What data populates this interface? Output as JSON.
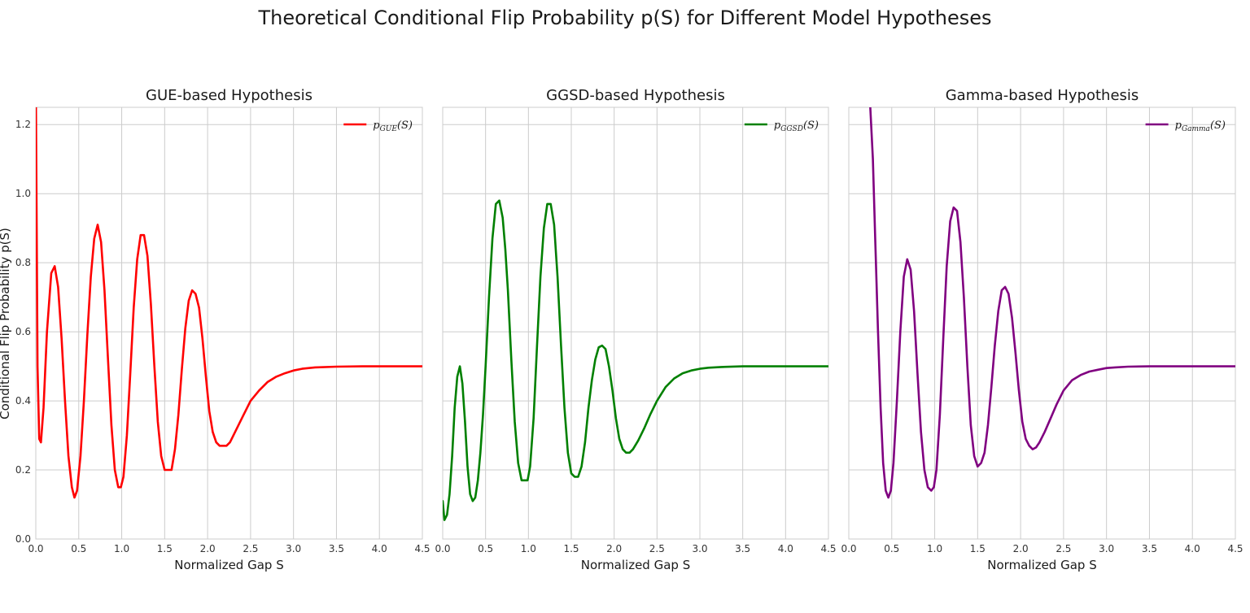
{
  "figure": {
    "title": "Theoretical Conditional Flip Probability p(S) for Different Model Hypotheses",
    "ylabel": "Conditional Flip Probability p(S)"
  },
  "chart_data": [
    {
      "type": "line",
      "title": "GUE-based Hypothesis",
      "xlabel": "Normalized Gap S",
      "ylabel": "Conditional Flip Probability p(S)",
      "xlim": [
        0,
        4.5
      ],
      "ylim": [
        0,
        1.25
      ],
      "xticks": [
        "0.0",
        "0.5",
        "1.0",
        "1.5",
        "2.0",
        "2.5",
        "3.0",
        "3.5",
        "4.0",
        "4.5"
      ],
      "yticks": [
        "0.0",
        "0.2",
        "0.4",
        "0.6",
        "0.8",
        "1.0",
        "1.2"
      ],
      "grid": true,
      "legend_position": "top-right",
      "series": [
        {
          "name": "p_GUE(S)",
          "legend_base": "p",
          "legend_sub": "GUE",
          "legend_tail": "(S)",
          "color": "#ff0000",
          "x": [
            0.002,
            0.01,
            0.02,
            0.04,
            0.06,
            0.09,
            0.13,
            0.18,
            0.22,
            0.26,
            0.3,
            0.34,
            0.38,
            0.42,
            0.45,
            0.48,
            0.52,
            0.56,
            0.6,
            0.64,
            0.68,
            0.72,
            0.76,
            0.8,
            0.84,
            0.88,
            0.92,
            0.96,
            0.99,
            1.02,
            1.06,
            1.1,
            1.14,
            1.18,
            1.22,
            1.26,
            1.3,
            1.34,
            1.38,
            1.42,
            1.46,
            1.5,
            1.54,
            1.58,
            1.62,
            1.66,
            1.7,
            1.74,
            1.78,
            1.82,
            1.86,
            1.9,
            1.94,
            1.98,
            2.02,
            2.06,
            2.1,
            2.14,
            2.18,
            2.22,
            2.26,
            2.3,
            2.36,
            2.42,
            2.5,
            2.6,
            2.7,
            2.8,
            2.9,
            3.0,
            3.1,
            3.25,
            3.5,
            3.8,
            4.1,
            4.5
          ],
          "y": [
            1.25,
            0.9,
            0.5,
            0.29,
            0.28,
            0.38,
            0.6,
            0.77,
            0.79,
            0.73,
            0.58,
            0.4,
            0.24,
            0.15,
            0.12,
            0.14,
            0.24,
            0.4,
            0.59,
            0.76,
            0.87,
            0.91,
            0.86,
            0.72,
            0.52,
            0.33,
            0.2,
            0.15,
            0.15,
            0.18,
            0.3,
            0.48,
            0.67,
            0.81,
            0.88,
            0.88,
            0.82,
            0.68,
            0.5,
            0.34,
            0.24,
            0.2,
            0.2,
            0.2,
            0.26,
            0.36,
            0.49,
            0.61,
            0.69,
            0.72,
            0.71,
            0.67,
            0.58,
            0.47,
            0.37,
            0.31,
            0.28,
            0.27,
            0.27,
            0.27,
            0.28,
            0.3,
            0.33,
            0.36,
            0.4,
            0.43,
            0.455,
            0.47,
            0.48,
            0.488,
            0.493,
            0.497,
            0.499,
            0.5,
            0.5,
            0.5
          ]
        }
      ]
    },
    {
      "type": "line",
      "title": "GGSD-based Hypothesis",
      "xlabel": "Normalized Gap S",
      "xlim": [
        0,
        4.5
      ],
      "ylim": [
        0,
        1.25
      ],
      "xticks": [
        "0.0",
        "0.5",
        "1.0",
        "1.5",
        "2.0",
        "2.5",
        "3.0",
        "3.5",
        "4.0",
        "4.5"
      ],
      "grid": true,
      "legend_position": "top-right",
      "series": [
        {
          "name": "p_GGSD(S)",
          "legend_base": "p",
          "legend_sub": "GGSD",
          "legend_tail": "(S)",
          "color": "#008000",
          "x": [
            0.0,
            0.02,
            0.05,
            0.08,
            0.11,
            0.14,
            0.17,
            0.2,
            0.23,
            0.26,
            0.29,
            0.32,
            0.35,
            0.38,
            0.41,
            0.44,
            0.47,
            0.5,
            0.54,
            0.58,
            0.62,
            0.66,
            0.7,
            0.73,
            0.76,
            0.8,
            0.84,
            0.88,
            0.92,
            0.96,
            0.99,
            1.02,
            1.06,
            1.1,
            1.14,
            1.18,
            1.22,
            1.26,
            1.3,
            1.34,
            1.38,
            1.42,
            1.46,
            1.5,
            1.54,
            1.58,
            1.62,
            1.66,
            1.7,
            1.74,
            1.78,
            1.82,
            1.86,
            1.9,
            1.94,
            1.98,
            2.02,
            2.06,
            2.1,
            2.14,
            2.18,
            2.22,
            2.28,
            2.35,
            2.42,
            2.5,
            2.6,
            2.7,
            2.8,
            2.9,
            3.0,
            3.1,
            3.25,
            3.5,
            3.8,
            4.1,
            4.5
          ],
          "y": [
            0.11,
            0.055,
            0.07,
            0.13,
            0.24,
            0.38,
            0.47,
            0.5,
            0.45,
            0.34,
            0.21,
            0.13,
            0.11,
            0.12,
            0.17,
            0.25,
            0.36,
            0.5,
            0.7,
            0.87,
            0.97,
            0.98,
            0.93,
            0.84,
            0.72,
            0.52,
            0.34,
            0.22,
            0.17,
            0.17,
            0.17,
            0.21,
            0.35,
            0.56,
            0.76,
            0.9,
            0.97,
            0.97,
            0.91,
            0.76,
            0.56,
            0.38,
            0.25,
            0.19,
            0.18,
            0.18,
            0.21,
            0.28,
            0.38,
            0.46,
            0.52,
            0.555,
            0.56,
            0.55,
            0.5,
            0.43,
            0.35,
            0.29,
            0.26,
            0.25,
            0.25,
            0.26,
            0.285,
            0.32,
            0.36,
            0.4,
            0.44,
            0.465,
            0.48,
            0.488,
            0.493,
            0.496,
            0.498,
            0.5,
            0.5,
            0.5,
            0.5
          ]
        }
      ]
    },
    {
      "type": "line",
      "title": "Gamma-based Hypothesis",
      "xlabel": "Normalized Gap S",
      "xlim": [
        0,
        4.5
      ],
      "ylim": [
        0,
        1.25
      ],
      "xticks": [
        "0.0",
        "0.5",
        "1.0",
        "1.5",
        "2.0",
        "2.5",
        "3.0",
        "3.5",
        "4.0",
        "4.5"
      ],
      "grid": true,
      "legend_position": "top-right",
      "series": [
        {
          "name": "p_Gamma(S)",
          "legend_base": "p",
          "legend_sub": "Gamma",
          "legend_tail": "(S)",
          "color": "#800080",
          "x": [
            0.25,
            0.28,
            0.31,
            0.34,
            0.37,
            0.4,
            0.43,
            0.46,
            0.49,
            0.52,
            0.56,
            0.6,
            0.64,
            0.68,
            0.72,
            0.76,
            0.8,
            0.84,
            0.88,
            0.92,
            0.96,
            0.99,
            1.02,
            1.06,
            1.1,
            1.14,
            1.18,
            1.22,
            1.26,
            1.3,
            1.34,
            1.38,
            1.42,
            1.46,
            1.5,
            1.54,
            1.58,
            1.62,
            1.66,
            1.7,
            1.74,
            1.78,
            1.82,
            1.86,
            1.9,
            1.94,
            1.98,
            2.02,
            2.06,
            2.1,
            2.14,
            2.18,
            2.22,
            2.28,
            2.35,
            2.42,
            2.5,
            2.6,
            2.7,
            2.8,
            2.9,
            3.0,
            3.1,
            3.25,
            3.5,
            3.8,
            4.1,
            4.5
          ],
          "y": [
            1.25,
            1.1,
            0.85,
            0.6,
            0.38,
            0.22,
            0.14,
            0.12,
            0.14,
            0.22,
            0.4,
            0.6,
            0.76,
            0.81,
            0.78,
            0.66,
            0.48,
            0.31,
            0.2,
            0.15,
            0.14,
            0.15,
            0.2,
            0.36,
            0.58,
            0.79,
            0.92,
            0.96,
            0.95,
            0.86,
            0.7,
            0.5,
            0.33,
            0.24,
            0.21,
            0.22,
            0.25,
            0.33,
            0.44,
            0.56,
            0.66,
            0.72,
            0.73,
            0.71,
            0.64,
            0.54,
            0.43,
            0.34,
            0.29,
            0.27,
            0.26,
            0.265,
            0.28,
            0.31,
            0.35,
            0.39,
            0.43,
            0.46,
            0.475,
            0.485,
            0.49,
            0.495,
            0.497,
            0.499,
            0.5,
            0.5,
            0.5,
            0.5
          ]
        }
      ]
    }
  ]
}
